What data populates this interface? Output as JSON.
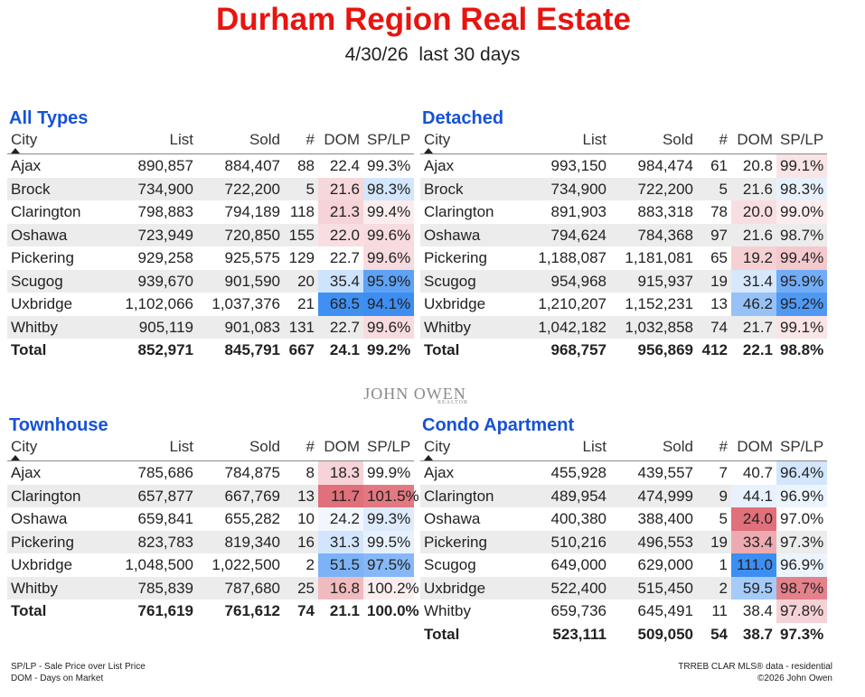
{
  "title": "Durham Region Real Estate",
  "subtitle": "4/30/26  last 30 days",
  "columns": {
    "city": "City",
    "list": "List",
    "sold": "Sold",
    "count": "#",
    "dom": "DOM",
    "splp": "SP/LP"
  },
  "watermark": {
    "name": "JOHN OWEN",
    "tag": "REALTOR"
  },
  "footer": {
    "left1": "SP/LP - Sale Price over List Price",
    "left2": "DOM - Days on Market",
    "right1": "TRREB CLAR MLS® data - residential",
    "right2": "©2026 John Owen"
  },
  "colors": {
    "title": "#e8140f",
    "section": "#1652d8",
    "blue_high": "#3d8ef2",
    "red_high": "#e0707a"
  },
  "panels": [
    {
      "key": "all",
      "title": "All Types",
      "rows": [
        {
          "city": "Ajax",
          "list": "890,857",
          "sold": "884,407",
          "count": "88",
          "dom": "22.4",
          "splp": "99.3%"
        },
        {
          "city": "Brock",
          "list": "734,900",
          "sold": "722,200",
          "count": "5",
          "dom": "21.6",
          "splp": "98.3%"
        },
        {
          "city": "Clarington",
          "list": "798,883",
          "sold": "794,189",
          "count": "118",
          "dom": "21.3",
          "splp": "99.4%"
        },
        {
          "city": "Oshawa",
          "list": "723,949",
          "sold": "720,850",
          "count": "155",
          "dom": "22.0",
          "splp": "99.6%"
        },
        {
          "city": "Pickering",
          "list": "929,258",
          "sold": "925,575",
          "count": "129",
          "dom": "22.7",
          "splp": "99.6%"
        },
        {
          "city": "Scugog",
          "list": "939,670",
          "sold": "901,590",
          "count": "20",
          "dom": "35.4",
          "splp": "95.9%"
        },
        {
          "city": "Uxbridge",
          "list": "1,102,066",
          "sold": "1,037,376",
          "count": "21",
          "dom": "68.5",
          "splp": "94.1%"
        },
        {
          "city": "Whitby",
          "list": "905,119",
          "sold": "901,083",
          "count": "131",
          "dom": "22.7",
          "splp": "99.6%"
        }
      ],
      "total": {
        "city": "Total",
        "list": "852,971",
        "sold": "845,791",
        "count": "667",
        "dom": "24.1",
        "splp": "99.2%"
      }
    },
    {
      "key": "det",
      "title": "Detached",
      "rows": [
        {
          "city": "Ajax",
          "list": "993,150",
          "sold": "984,474",
          "count": "61",
          "dom": "20.8",
          "splp": "99.1%"
        },
        {
          "city": "Brock",
          "list": "734,900",
          "sold": "722,200",
          "count": "5",
          "dom": "21.6",
          "splp": "98.3%"
        },
        {
          "city": "Clarington",
          "list": "891,903",
          "sold": "883,318",
          "count": "78",
          "dom": "20.0",
          "splp": "99.0%"
        },
        {
          "city": "Oshawa",
          "list": "794,624",
          "sold": "784,368",
          "count": "97",
          "dom": "21.6",
          "splp": "98.7%"
        },
        {
          "city": "Pickering",
          "list": "1,188,087",
          "sold": "1,181,081",
          "count": "65",
          "dom": "19.2",
          "splp": "99.4%"
        },
        {
          "city": "Scugog",
          "list": "954,968",
          "sold": "915,937",
          "count": "19",
          "dom": "31.4",
          "splp": "95.9%"
        },
        {
          "city": "Uxbridge",
          "list": "1,210,207",
          "sold": "1,152,231",
          "count": "13",
          "dom": "46.2",
          "splp": "95.2%"
        },
        {
          "city": "Whitby",
          "list": "1,042,182",
          "sold": "1,032,858",
          "count": "74",
          "dom": "21.7",
          "splp": "99.1%"
        }
      ],
      "total": {
        "city": "Total",
        "list": "968,757",
        "sold": "956,869",
        "count": "412",
        "dom": "22.1",
        "splp": "98.8%"
      }
    },
    {
      "key": "town",
      "title": "Townhouse",
      "rows": [
        {
          "city": "Ajax",
          "list": "785,686",
          "sold": "784,875",
          "count": "8",
          "dom": "18.3",
          "splp": "99.9%"
        },
        {
          "city": "Clarington",
          "list": "657,877",
          "sold": "667,769",
          "count": "13",
          "dom": "11.7",
          "splp": "101.5%"
        },
        {
          "city": "Oshawa",
          "list": "659,841",
          "sold": "655,282",
          "count": "10",
          "dom": "24.2",
          "splp": "99.3%"
        },
        {
          "city": "Pickering",
          "list": "823,783",
          "sold": "819,340",
          "count": "16",
          "dom": "31.3",
          "splp": "99.5%"
        },
        {
          "city": "Uxbridge",
          "list": "1,048,500",
          "sold": "1,022,500",
          "count": "2",
          "dom": "51.5",
          "splp": "97.5%"
        },
        {
          "city": "Whitby",
          "list": "785,839",
          "sold": "787,680",
          "count": "25",
          "dom": "16.8",
          "splp": "100.2%"
        }
      ],
      "total": {
        "city": "Total",
        "list": "761,619",
        "sold": "761,612",
        "count": "74",
        "dom": "21.1",
        "splp": "100.0%"
      }
    },
    {
      "key": "condo",
      "title": "Condo Apartment",
      "rows": [
        {
          "city": "Ajax",
          "list": "455,928",
          "sold": "439,557",
          "count": "7",
          "dom": "40.7",
          "splp": "96.4%"
        },
        {
          "city": "Clarington",
          "list": "489,954",
          "sold": "474,999",
          "count": "9",
          "dom": "44.1",
          "splp": "96.9%"
        },
        {
          "city": "Oshawa",
          "list": "400,380",
          "sold": "388,400",
          "count": "5",
          "dom": "24.0",
          "splp": "97.0%"
        },
        {
          "city": "Pickering",
          "list": "510,216",
          "sold": "496,553",
          "count": "19",
          "dom": "33.4",
          "splp": "97.3%"
        },
        {
          "city": "Scugog",
          "list": "649,000",
          "sold": "629,000",
          "count": "1",
          "dom": "111.0",
          "splp": "96.9%"
        },
        {
          "city": "Uxbridge",
          "list": "522,400",
          "sold": "515,450",
          "count": "2",
          "dom": "59.5",
          "splp": "98.7%"
        },
        {
          "city": "Whitby",
          "list": "659,736",
          "sold": "645,491",
          "count": "11",
          "dom": "38.4",
          "splp": "97.8%"
        }
      ],
      "total": {
        "city": "Total",
        "list": "523,111",
        "sold": "509,050",
        "count": "54",
        "dom": "38.7",
        "splp": "97.3%"
      }
    }
  ]
}
